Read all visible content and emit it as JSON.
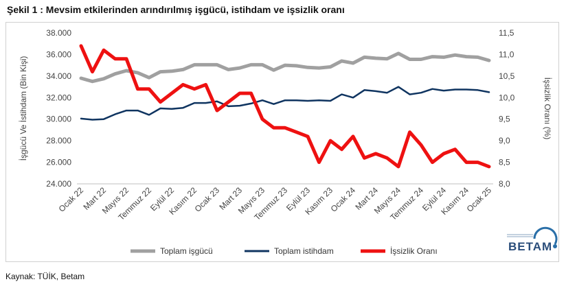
{
  "figure": {
    "title": "Şekil 1 : Mevsim etkilerinden arındırılmış işgücü, istihdam ve işsizlik oranı",
    "source": "Kaynak: TÜİK, Betam",
    "logo_text": "BETAM"
  },
  "chart_data": {
    "type": "line",
    "ylabel_left": "İşgücü Ve İstihdam (Bin Kişi)",
    "ylabel_right": "İşsizlik Oranı (%)",
    "ylim_left": [
      24000,
      38000
    ],
    "ylim_right": [
      8.0,
      11.5
    ],
    "yticks_left": [
      "24.000",
      "26.000",
      "28.000",
      "30.000",
      "32.000",
      "34.000",
      "36.000",
      "38.000"
    ],
    "yticks_right": [
      "8,0",
      "8,5",
      "9,0",
      "9,5",
      "10,0",
      "10,5",
      "11,0",
      "11,5"
    ],
    "x_tick_labels": [
      "Ocak 22",
      "Mart 22",
      "Mayıs 22",
      "Temmuz 22",
      "Eylül 22",
      "Kasım 22",
      "Ocak 23",
      "Mart 23",
      "Mayıs 23",
      "Temmuz 23",
      "Eylül 23",
      "Kasım 23",
      "Ocak 24",
      "Mart 24",
      "Mayıs 24",
      "Temmuz 24",
      "Eylül 24",
      "Kasım 24",
      "Ocak 25"
    ],
    "x_tick_every": 2,
    "grid": false,
    "legend_position": "bottom",
    "series": [
      {
        "name": "Toplam işgücü",
        "axis": "left",
        "color": "#a0a0a0",
        "values": [
          33800,
          33500,
          33750,
          34200,
          34500,
          34300,
          33850,
          34400,
          34450,
          34600,
          35050,
          35050,
          35050,
          34600,
          34750,
          35050,
          35050,
          34550,
          35000,
          34950,
          34800,
          34750,
          34850,
          35400,
          35200,
          35750,
          35650,
          35600,
          36100,
          35550,
          35550,
          35800,
          35750,
          35950,
          35800,
          35750,
          35450
        ]
      },
      {
        "name": "Toplam istihdam",
        "axis": "left",
        "color": "#0f3460",
        "values": [
          30050,
          29950,
          30000,
          30450,
          30800,
          30800,
          30400,
          31000,
          30950,
          31050,
          31500,
          31500,
          31650,
          31200,
          31250,
          31450,
          31750,
          31400,
          31750,
          31750,
          31700,
          31750,
          31700,
          32300,
          32000,
          32700,
          32600,
          32450,
          33000,
          32300,
          32450,
          32800,
          32650,
          32750,
          32750,
          32700,
          32500
        ]
      },
      {
        "name": "İşsizlik Oranı",
        "axis": "right",
        "color": "#ee1111",
        "values": [
          11.2,
          10.6,
          11.1,
          10.9,
          10.9,
          10.2,
          10.2,
          9.9,
          10.1,
          10.3,
          10.2,
          10.3,
          9.7,
          9.9,
          10.1,
          10.1,
          9.5,
          9.3,
          9.3,
          9.2,
          9.1,
          8.5,
          9.0,
          8.8,
          9.1,
          8.6,
          8.7,
          8.6,
          8.4,
          9.2,
          8.9,
          8.5,
          8.7,
          8.8,
          8.5,
          8.5,
          8.4
        ]
      }
    ]
  }
}
